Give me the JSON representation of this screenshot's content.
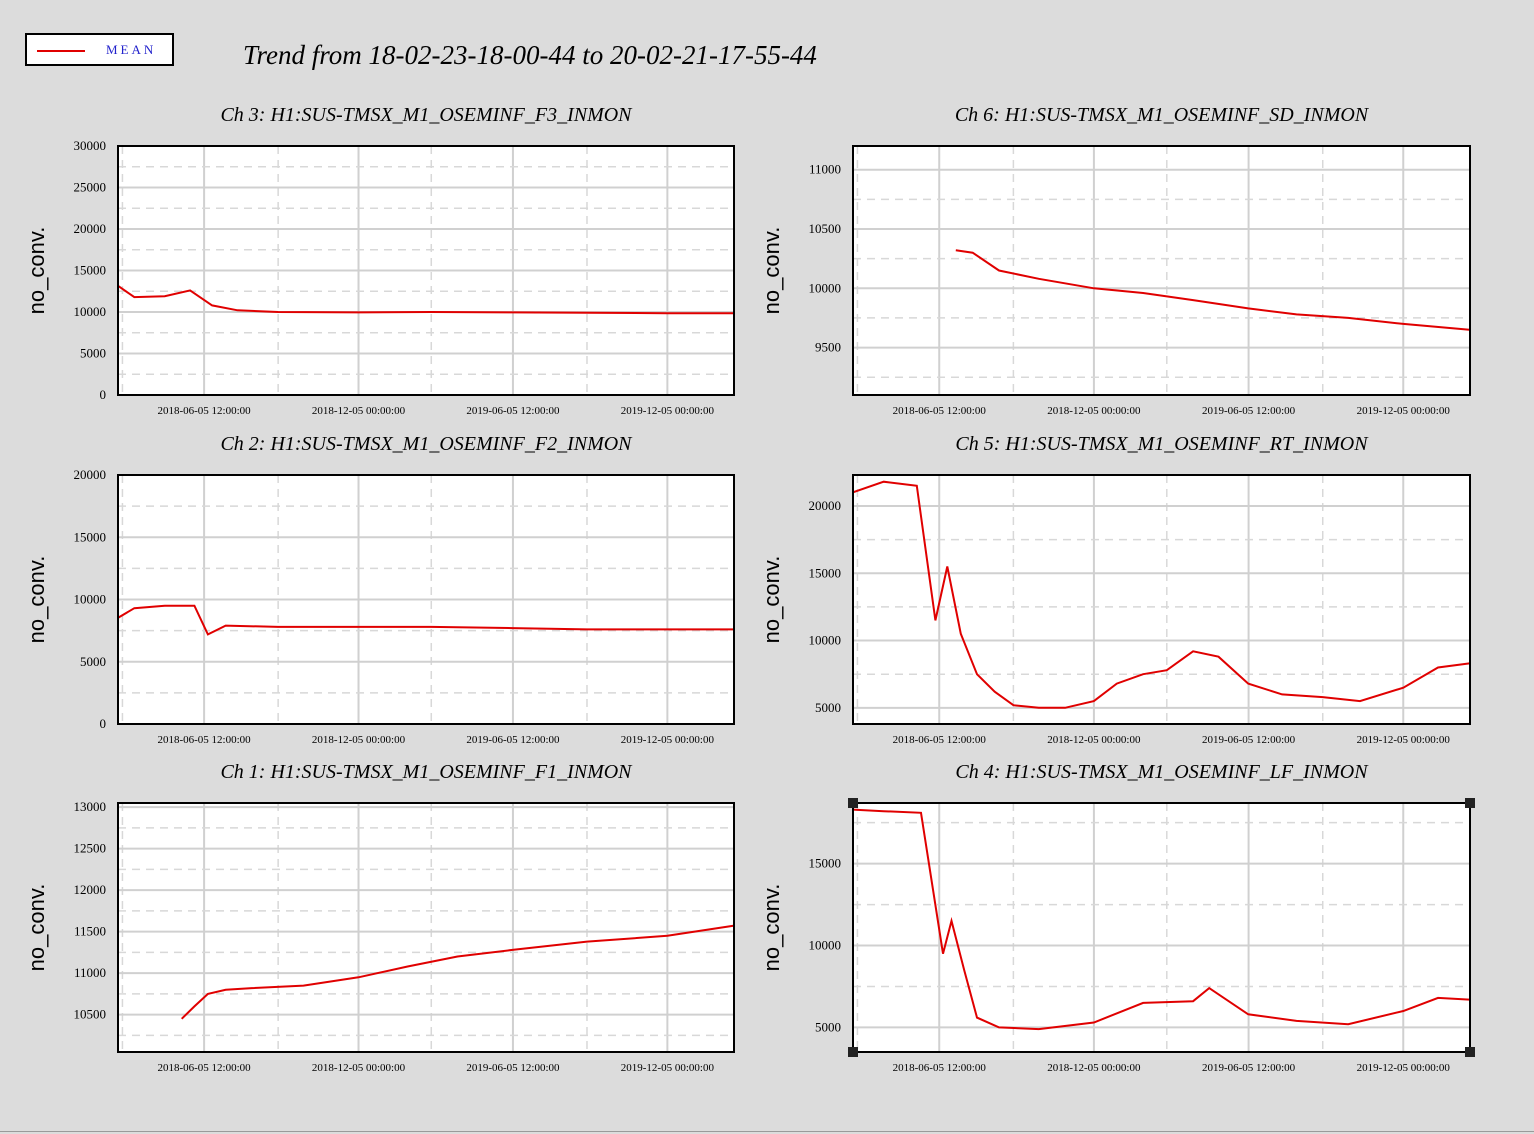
{
  "legend": {
    "label": "MEAN",
    "color": "#e00000"
  },
  "title": "Trend from 18-02-23-18-00-44 to 20-02-21-17-55-44",
  "chart_data": [
    {
      "type": "line",
      "title": "Ch 3: H1:SUS-TMSX_M1_OSEMINF_F3_INMON",
      "ylabel": "no_conv.",
      "ylim": [
        0,
        30000
      ],
      "yticks": [
        0,
        5000,
        10000,
        15000,
        20000,
        25000,
        30000
      ],
      "xticks": [
        "2018-06-05 12:00:00",
        "2018-12-05 00:00:00",
        "2019-06-05 12:00:00",
        "2019-12-05 00:00:00"
      ],
      "series": [
        {
          "color": "#e00000",
          "x": [
            "2018-02-23",
            "2018-03-15",
            "2018-04-20",
            "2018-05-20",
            "2018-06-15",
            "2018-07-15",
            "2018-09-01",
            "2018-12-05",
            "2019-03-01",
            "2019-06-05",
            "2019-09-01",
            "2019-12-05",
            "2020-02-21"
          ],
          "values": [
            13200,
            11800,
            11900,
            12600,
            10800,
            10200,
            10000,
            9950,
            10000,
            9950,
            9900,
            9850,
            9850
          ]
        }
      ]
    },
    {
      "type": "line",
      "title": "Ch 6: H1:SUS-TMSX_M1_OSEMINF_SD_INMON",
      "ylabel": "no_conv.",
      "ylim": [
        9100,
        11200
      ],
      "yticks": [
        9500,
        10000,
        10500,
        11000
      ],
      "xticks": [
        "2018-06-05 12:00:00",
        "2018-12-05 00:00:00",
        "2019-06-05 12:00:00",
        "2019-12-05 00:00:00"
      ],
      "series": [
        {
          "color": "#e00000",
          "x": [
            "2018-06-25",
            "2018-07-15",
            "2018-08-15",
            "2018-10-01",
            "2018-12-05",
            "2019-02-01",
            "2019-04-01",
            "2019-06-05",
            "2019-08-01",
            "2019-10-01",
            "2019-12-05",
            "2020-02-21"
          ],
          "values": [
            10320,
            10300,
            10150,
            10080,
            10000,
            9960,
            9900,
            9830,
            9780,
            9750,
            9700,
            9650
          ]
        }
      ]
    },
    {
      "type": "line",
      "title": "Ch 2: H1:SUS-TMSX_M1_OSEMINF_F2_INMON",
      "ylabel": "no_conv.",
      "ylim": [
        0,
        20000
      ],
      "yticks": [
        0,
        5000,
        10000,
        15000,
        20000
      ],
      "xticks": [
        "2018-06-05 12:00:00",
        "2018-12-05 00:00:00",
        "2019-06-05 12:00:00",
        "2019-12-05 00:00:00"
      ],
      "series": [
        {
          "color": "#e00000",
          "x": [
            "2018-02-23",
            "2018-03-15",
            "2018-04-20",
            "2018-05-25",
            "2018-06-10",
            "2018-07-01",
            "2018-09-01",
            "2018-12-05",
            "2019-03-01",
            "2019-06-05",
            "2019-09-01",
            "2019-12-05",
            "2020-02-21"
          ],
          "values": [
            8500,
            9300,
            9500,
            9500,
            7200,
            7900,
            7800,
            7800,
            7800,
            7700,
            7600,
            7600,
            7600
          ]
        }
      ]
    },
    {
      "type": "line",
      "title": "Ch 5: H1:SUS-TMSX_M1_OSEMINF_RT_INMON",
      "ylabel": "no_conv.",
      "ylim": [
        3800,
        22300
      ],
      "yticks": [
        5000,
        10000,
        15000,
        20000
      ],
      "xticks": [
        "2018-06-05 12:00:00",
        "2018-12-05 00:00:00",
        "2019-06-05 12:00:00",
        "2019-12-05 00:00:00"
      ],
      "series": [
        {
          "color": "#e00000",
          "x": [
            "2018-02-23",
            "2018-04-01",
            "2018-05-10",
            "2018-06-01",
            "2018-06-15",
            "2018-07-01",
            "2018-07-20",
            "2018-08-10",
            "2018-09-01",
            "2018-10-01",
            "2018-11-01",
            "2018-12-05",
            "2019-01-01",
            "2019-02-01",
            "2019-03-01",
            "2019-04-01",
            "2019-05-01",
            "2019-06-05",
            "2019-07-15",
            "2019-09-01",
            "2019-10-15",
            "2019-12-05",
            "2020-01-15",
            "2020-02-21"
          ],
          "values": [
            21000,
            21800,
            21500,
            11500,
            15500,
            10500,
            7500,
            6200,
            5200,
            5000,
            5000,
            5500,
            6800,
            7500,
            7800,
            9200,
            8800,
            6800,
            6000,
            5800,
            5500,
            6500,
            8000,
            8300
          ]
        }
      ]
    },
    {
      "type": "line",
      "title": "Ch 1: H1:SUS-TMSX_M1_OSEMINF_F1_INMON",
      "ylabel": "no_conv.",
      "ylim": [
        10050,
        13050
      ],
      "yticks": [
        10500,
        11000,
        11500,
        12000,
        12500,
        13000
      ],
      "xticks": [
        "2018-06-05 12:00:00",
        "2018-12-05 00:00:00",
        "2019-06-05 12:00:00",
        "2019-12-05 00:00:00"
      ],
      "series": [
        {
          "color": "#e00000",
          "x": [
            "2018-05-10",
            "2018-05-25",
            "2018-06-10",
            "2018-07-01",
            "2018-08-01",
            "2018-10-01",
            "2018-12-05",
            "2019-02-01",
            "2019-04-01",
            "2019-06-05",
            "2019-09-01",
            "2019-12-05",
            "2020-02-21"
          ],
          "values": [
            10450,
            10600,
            10750,
            10800,
            10820,
            10850,
            10950,
            11080,
            11200,
            11280,
            11380,
            11450,
            11570
          ]
        }
      ]
    },
    {
      "type": "line",
      "title": "Ch 4: H1:SUS-TMSX_M1_OSEMINF_LF_INMON",
      "ylabel": "no_conv.",
      "ylim": [
        3500,
        18700
      ],
      "yticks": [
        5000,
        10000,
        15000
      ],
      "xticks": [
        "2018-06-05 12:00:00",
        "2018-12-05 00:00:00",
        "2019-06-05 12:00:00",
        "2019-12-05 00:00:00"
      ],
      "series": [
        {
          "color": "#e00000",
          "x": [
            "2018-02-23",
            "2018-04-01",
            "2018-05-15",
            "2018-06-10",
            "2018-06-20",
            "2018-07-05",
            "2018-07-20",
            "2018-08-15",
            "2018-10-01",
            "2018-12-05",
            "2019-02-01",
            "2019-04-01",
            "2019-04-20",
            "2019-06-05",
            "2019-08-01",
            "2019-10-01",
            "2019-12-05",
            "2020-01-15",
            "2020-02-21"
          ],
          "values": [
            18300,
            18200,
            18100,
            9500,
            11500,
            8500,
            5600,
            5000,
            4900,
            5300,
            6500,
            6600,
            7400,
            5800,
            5400,
            5200,
            6000,
            6800,
            6700
          ]
        }
      ]
    }
  ]
}
